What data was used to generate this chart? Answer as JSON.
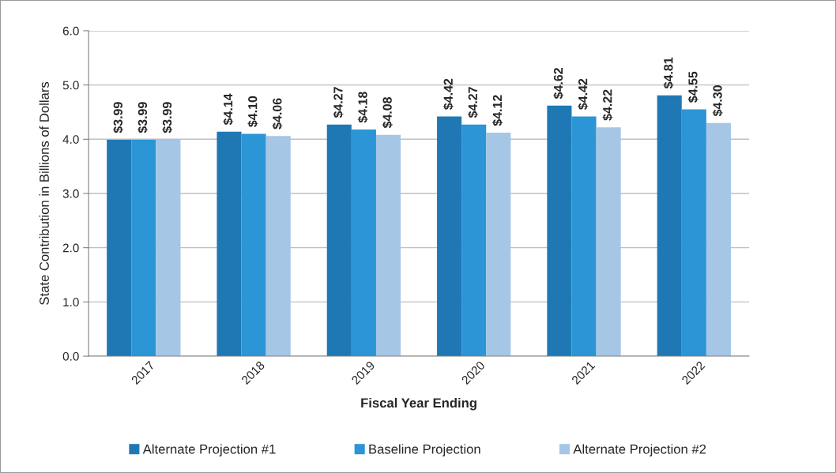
{
  "chart_data": {
    "type": "bar",
    "xlabel": "Fiscal Year Ending",
    "ylabel": "State Contribution in Billions of Dollars",
    "categories": [
      "2017",
      "2018",
      "2019",
      "2020",
      "2021",
      "2022"
    ],
    "series": [
      {
        "name": "Alternate Projection #1",
        "color": "#1f78b4",
        "values": [
          3.99,
          4.14,
          4.27,
          4.42,
          4.62,
          4.81
        ],
        "value_labels": [
          "$3.99",
          "$4.14",
          "$4.27",
          "$4.42",
          "$4.62",
          "$4.81"
        ]
      },
      {
        "name": "Baseline Projection",
        "color": "#2b95d6",
        "values": [
          3.99,
          4.1,
          4.18,
          4.27,
          4.42,
          4.55
        ],
        "value_labels": [
          "$3.99",
          "$4.10",
          "$4.18",
          "$4.27",
          "$4.42",
          "$4.55"
        ]
      },
      {
        "name": "Alternate Projection #2",
        "color": "#a6c6e6",
        "values": [
          3.99,
          4.06,
          4.08,
          4.12,
          4.22,
          4.3
        ],
        "value_labels": [
          "$3.99",
          "$4.06",
          "$4.08",
          "$4.12",
          "$4.22",
          "$4.30"
        ]
      }
    ],
    "ylim": [
      0,
      6
    ],
    "yticks": [
      {
        "value": 0,
        "label": "0.0"
      },
      {
        "value": 1,
        "label": "1.0"
      },
      {
        "value": 2,
        "label": "2.0"
      },
      {
        "value": 3,
        "label": "3.0"
      },
      {
        "value": 4,
        "label": "4.0"
      },
      {
        "value": 5,
        "label": "5.0"
      },
      {
        "value": 6,
        "label": "6.0"
      }
    ],
    "grid": "y",
    "legend": "bottom"
  }
}
